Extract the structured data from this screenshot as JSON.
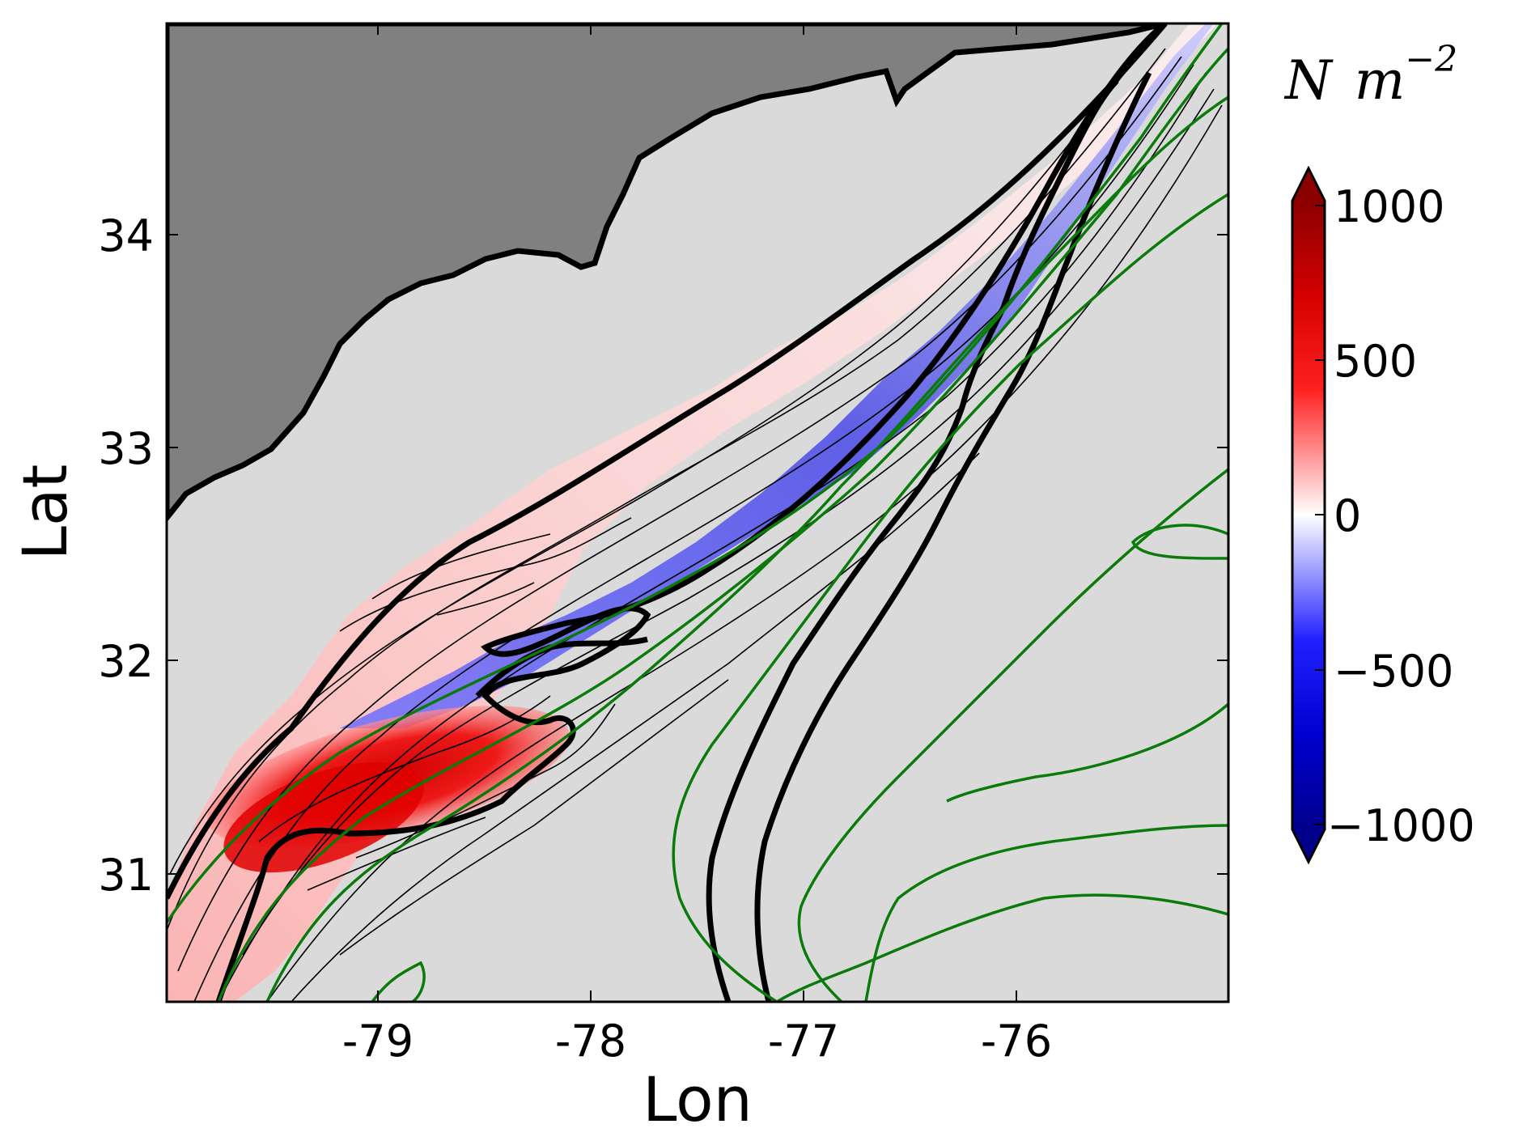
{
  "chart_data": {
    "type": "heatmap",
    "xlabel": "Lon",
    "ylabel": "Lat",
    "x_ticks": [
      "-79",
      "-78",
      "-77",
      "-76"
    ],
    "y_ticks": [
      "31",
      "32",
      "33",
      "34"
    ],
    "xlim": [
      -80.0,
      -75.0
    ],
    "ylim": [
      30.4,
      35.0
    ],
    "colorbar": {
      "unit_symbol": "N",
      "unit_base": "m",
      "unit_exponent": "−2",
      "ticks": [
        "1000",
        "500",
        "0",
        "−500",
        "−1000"
      ],
      "range": [
        -1000,
        1000
      ],
      "colormap": "seismic",
      "extend": "both"
    },
    "colors": {
      "land": "#808080",
      "ocean": "#dadada",
      "positive": "#cc0000",
      "negative": "#0000cc",
      "contour": "#000000",
      "streamline": "#007700"
    },
    "legend": "none",
    "grid": false
  }
}
